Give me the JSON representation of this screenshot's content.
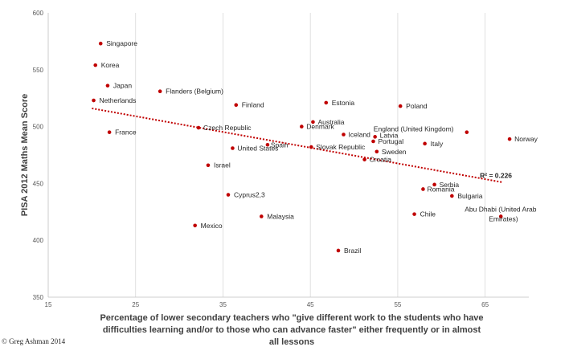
{
  "chart_data": {
    "type": "scatter",
    "title": "",
    "xlabel_lines": [
      "Percentage of lower secondary teachers who \"give different work to the students who have",
      "difficulties learning and/or to those who can advance faster\" either frequently or in almost",
      "all lessons"
    ],
    "ylabel": "PISA 2012 Maths Mean Score",
    "xlim": [
      15,
      70
    ],
    "ylim": [
      350,
      600
    ],
    "xticks": [
      15,
      25,
      35,
      45,
      55,
      65
    ],
    "yticks": [
      350,
      400,
      450,
      500,
      550,
      600
    ],
    "grid": "vertical",
    "marker_color": "#c00000",
    "trendline": {
      "x_start": 20,
      "y_start": 516,
      "x_end": 67,
      "y_end": 451,
      "style": "dotted",
      "color": "#c00000",
      "r2_label": "R² = 0.226"
    },
    "points": [
      {
        "name": "Singapore",
        "x": 21,
        "y": 573
      },
      {
        "name": "Korea",
        "x": 20.4,
        "y": 554
      },
      {
        "name": "Japan",
        "x": 21.8,
        "y": 536
      },
      {
        "name": "Flanders (Belgium)",
        "x": 27.8,
        "y": 531
      },
      {
        "name": "Netherlands",
        "x": 20.2,
        "y": 523
      },
      {
        "name": "France",
        "x": 22,
        "y": 495
      },
      {
        "name": "Finland",
        "x": 36.5,
        "y": 519
      },
      {
        "name": "Estonia",
        "x": 46.8,
        "y": 521
      },
      {
        "name": "Poland",
        "x": 55.3,
        "y": 518
      },
      {
        "name": "Australia",
        "x": 45.3,
        "y": 504
      },
      {
        "name": "Denmark",
        "x": 44,
        "y": 500
      },
      {
        "name": "Czech Republic",
        "x": 32.2,
        "y": 499
      },
      {
        "name": "Iceland",
        "x": 48.8,
        "y": 493
      },
      {
        "name": "Latvia",
        "x": 52.4,
        "y": 491
      },
      {
        "name": "Portugal",
        "x": 52.2,
        "y": 487
      },
      {
        "name": "Italy",
        "x": 58.1,
        "y": 485
      },
      {
        "name": "Spain",
        "x": 40.1,
        "y": 484
      },
      {
        "name": "United States",
        "x": 36.1,
        "y": 481
      },
      {
        "name": "Slovak Republic",
        "x": 45.1,
        "y": 482
      },
      {
        "name": "Sweden",
        "x": 52.6,
        "y": 478
      },
      {
        "name": "Croatia",
        "x": 51.2,
        "y": 471
      },
      {
        "name": "England (United Kingdom)",
        "x": 62.9,
        "y": 495
      },
      {
        "name": "Norway",
        "x": 67.8,
        "y": 489
      },
      {
        "name": "Israel",
        "x": 33.3,
        "y": 466
      },
      {
        "name": "Serbia",
        "x": 59.2,
        "y": 449
      },
      {
        "name": "Romania",
        "x": 57.9,
        "y": 445
      },
      {
        "name": "Bulgaria",
        "x": 61.2,
        "y": 439
      },
      {
        "name": "Cyprus2,3",
        "x": 35.6,
        "y": 440
      },
      {
        "name": "Malaysia",
        "x": 39.4,
        "y": 421
      },
      {
        "name": "Chile",
        "x": 56.9,
        "y": 423
      },
      {
        "name": "Abu Dhabi (United Arab Emirates)",
        "x": 66.8,
        "y": 421
      },
      {
        "name": "Mexico",
        "x": 31.8,
        "y": 413
      },
      {
        "name": "Brazil",
        "x": 48.2,
        "y": 391
      }
    ]
  },
  "copyright": "© Greg Ashman 2014"
}
